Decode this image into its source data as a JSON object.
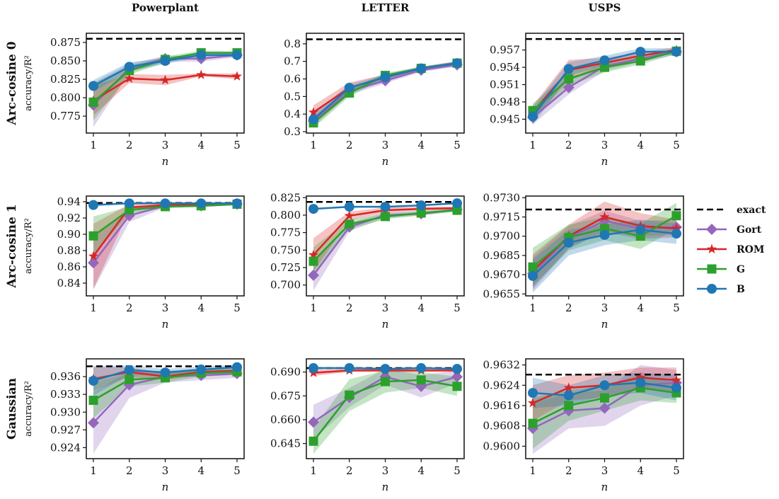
{
  "chart_data": {
    "type": "line",
    "columns": [
      "Powerplant",
      "LETTER",
      "USPS"
    ],
    "rows": [
      "Arc-cosine 0",
      "Arc-cosine 1",
      "Gaussian"
    ],
    "ylabel": "accuracy/R²",
    "xlabel": "n",
    "x": [
      1,
      2,
      3,
      4,
      5
    ],
    "legend": {
      "placement": "right",
      "entries": [
        "exact",
        "Gort",
        "ROM",
        "G",
        "B"
      ]
    },
    "series_style": [
      {
        "name": "Gort",
        "color": "#9467bd",
        "marker": "diamond"
      },
      {
        "name": "ROM",
        "color": "#d62728",
        "marker": "star"
      },
      {
        "name": "G",
        "color": "#2ca02c",
        "marker": "square"
      },
      {
        "name": "B",
        "color": "#1f77b4",
        "marker": "circle"
      }
    ],
    "exact_color": "#000000",
    "panels": [
      {
        "row": 0,
        "col": 0,
        "ylim": [
          0.752,
          0.8875
        ],
        "yticks": [
          "0.775",
          "0.800",
          "0.825",
          "0.850",
          "0.875"
        ],
        "exact": 0.88,
        "series": {
          "Gort": [
            0.79,
            0.84,
            0.853,
            0.853,
            0.858
          ],
          "ROM": [
            0.796,
            0.826,
            0.824,
            0.831,
            0.829
          ],
          "G": [
            0.794,
            0.837,
            0.852,
            0.861,
            0.861
          ],
          "B": [
            0.816,
            0.842,
            0.85,
            0.858,
            0.858
          ]
        },
        "spread": {
          "Gort": [
            0.03,
            0.006,
            0.004,
            0.004,
            0.003
          ],
          "ROM": [
            0.02,
            0.006,
            0.007,
            0.002,
            0.004
          ],
          "G": [
            0.025,
            0.006,
            0.004,
            0.003,
            0.002
          ],
          "B": [
            0.008,
            0.006,
            0.004,
            0.003,
            0.003
          ]
        }
      },
      {
        "row": 0,
        "col": 1,
        "ylim": [
          0.292,
          0.86
        ],
        "yticks": [
          "0.3",
          "0.4",
          "0.5",
          "0.6",
          "0.7",
          "0.8"
        ],
        "exact": 0.826,
        "series": {
          "Gort": [
            0.36,
            0.53,
            0.59,
            0.65,
            0.68
          ],
          "ROM": [
            0.41,
            0.55,
            0.61,
            0.66,
            0.69
          ],
          "G": [
            0.35,
            0.52,
            0.62,
            0.66,
            0.69
          ],
          "B": [
            0.37,
            0.55,
            0.61,
            0.66,
            0.69
          ]
        },
        "spread": {
          "Gort": [
            0.03,
            0.02,
            0.015,
            0.01,
            0.01
          ],
          "ROM": [
            0.04,
            0.03,
            0.015,
            0.01,
            0.01
          ],
          "G": [
            0.03,
            0.02,
            0.015,
            0.01,
            0.01
          ],
          "B": [
            0.03,
            0.02,
            0.015,
            0.01,
            0.01
          ]
        }
      },
      {
        "row": 0,
        "col": 2,
        "ylim": [
          0.9426,
          0.9599
        ],
        "yticks": [
          "0.945",
          "0.948",
          "0.951",
          "0.954",
          "0.957"
        ],
        "exact": 0.9589,
        "series": {
          "Gort": [
            0.9453,
            0.9505,
            0.9542,
            0.9555,
            0.9567
          ],
          "ROM": [
            0.9462,
            0.9535,
            0.9548,
            0.956,
            0.957
          ],
          "G": [
            0.9465,
            0.952,
            0.954,
            0.9551,
            0.9568
          ],
          "B": [
            0.9455,
            0.9537,
            0.9552,
            0.9567,
            0.9567
          ]
        },
        "spread": {
          "Gort": [
            0.0012,
            0.0012,
            0.0008,
            0.0006,
            0.0005
          ],
          "ROM": [
            0.0012,
            0.0018,
            0.0008,
            0.0006,
            0.0005
          ],
          "G": [
            0.0012,
            0.0012,
            0.0009,
            0.0006,
            0.0005
          ],
          "B": [
            0.0015,
            0.0012,
            0.0008,
            0.0006,
            0.0006
          ]
        }
      },
      {
        "row": 1,
        "col": 0,
        "ylim": [
          0.8243,
          0.947
        ],
        "yticks": [
          "0.84",
          "0.86",
          "0.88",
          "0.90",
          "0.92",
          "0.94"
        ],
        "exact": 0.9385,
        "series": {
          "Gort": [
            0.865,
            0.923,
            0.935,
            0.935,
            0.937
          ],
          "ROM": [
            0.873,
            0.933,
            0.936,
            0.936,
            0.937
          ],
          "G": [
            0.898,
            0.93,
            0.934,
            0.935,
            0.937
          ],
          "B": [
            0.936,
            0.938,
            0.938,
            0.938,
            0.938
          ]
        },
        "spread": {
          "Gort": [
            0.033,
            0.008,
            0.002,
            0.002,
            0.001
          ],
          "ROM": [
            0.04,
            0.004,
            0.002,
            0.001,
            0.001
          ],
          "G": [
            0.024,
            0.004,
            0.002,
            0.001,
            0.001
          ],
          "B": [
            0.001,
            0.001,
            0.001,
            0.001,
            0.001
          ]
        }
      },
      {
        "row": 1,
        "col": 1,
        "ylim": [
          0.6845,
          0.8273
        ],
        "yticks": [
          "0.700",
          "0.725",
          "0.750",
          "0.775",
          "0.800",
          "0.825"
        ],
        "exact": 0.819,
        "series": {
          "Gort": [
            0.714,
            0.783,
            0.8,
            0.802,
            0.808
          ],
          "ROM": [
            0.743,
            0.799,
            0.807,
            0.809,
            0.81
          ],
          "G": [
            0.734,
            0.787,
            0.798,
            0.803,
            0.807
          ],
          "B": [
            0.809,
            0.812,
            0.812,
            0.814,
            0.817
          ]
        },
        "spread": {
          "Gort": [
            0.022,
            0.006,
            0.004,
            0.003,
            0.002
          ],
          "ROM": [
            0.024,
            0.006,
            0.004,
            0.003,
            0.002
          ],
          "G": [
            0.02,
            0.007,
            0.004,
            0.003,
            0.002
          ],
          "B": [
            0.001,
            0.001,
            0.001,
            0.001,
            0.001
          ]
        }
      },
      {
        "row": 1,
        "col": 2,
        "ylim": [
          0.96535,
          0.97313
        ],
        "yticks": [
          "0.9655",
          "0.9670",
          "0.9685",
          "0.9700",
          "0.9715",
          "0.9730"
        ],
        "exact": 0.97208,
        "series": {
          "Gort": [
            0.9671,
            0.9699,
            0.9712,
            0.9706,
            0.9707
          ],
          "ROM": [
            0.9673,
            0.97,
            0.9715,
            0.9708,
            0.9706
          ],
          "G": [
            0.9676,
            0.9699,
            0.9706,
            0.97,
            0.9716
          ],
          "B": [
            0.9669,
            0.9695,
            0.9701,
            0.9705,
            0.9702
          ]
        },
        "spread": {
          "Gort": [
            0.0013,
            0.0009,
            0.0008,
            0.0006,
            0.0006
          ],
          "ROM": [
            0.0013,
            0.0009,
            0.0012,
            0.001,
            0.0007
          ],
          "G": [
            0.0015,
            0.001,
            0.0009,
            0.001,
            0.001
          ],
          "B": [
            0.0013,
            0.001,
            0.0008,
            0.0008,
            0.0008
          ]
        }
      },
      {
        "row": 2,
        "col": 0,
        "ylim": [
          0.92214,
          0.939
        ],
        "yticks": [
          "0.924",
          "0.927",
          "0.930",
          "0.933",
          "0.936"
        ],
        "exact": 0.93774,
        "series": {
          "Gort": [
            0.9282,
            0.9346,
            0.936,
            0.9362,
            0.9365
          ],
          "ROM": [
            0.9356,
            0.9368,
            0.936,
            0.9368,
            0.937
          ],
          "G": [
            0.932,
            0.9355,
            0.9358,
            0.9366,
            0.9368
          ],
          "B": [
            0.9353,
            0.9371,
            0.9367,
            0.9372,
            0.9376
          ]
        },
        "spread": {
          "Gort": [
            0.0052,
            0.0022,
            0.001,
            0.0008,
            0.0007
          ],
          "ROM": [
            0.002,
            0.0008,
            0.0006,
            0.0005,
            0.0005
          ],
          "G": [
            0.003,
            0.0012,
            0.0008,
            0.0006,
            0.0005
          ],
          "B": [
            0.0025,
            0.0008,
            0.0006,
            0.0005,
            0.0004
          ]
        }
      },
      {
        "row": 2,
        "col": 1,
        "ylim": [
          0.6355,
          0.6983
        ],
        "yticks": [
          "0.645",
          "0.660",
          "0.675",
          "0.690"
        ],
        "exact": 0.6925,
        "series": {
          "Gort": [
            0.6585,
            0.674,
            0.687,
            0.681,
            0.687
          ],
          "ROM": [
            0.6895,
            0.691,
            0.691,
            0.691,
            0.691
          ],
          "G": [
            0.6465,
            0.6755,
            0.684,
            0.685,
            0.681
          ],
          "B": [
            0.6925,
            0.6925,
            0.692,
            0.6925,
            0.692
          ]
        },
        "spread": {
          "Gort": [
            0.011,
            0.006,
            0.005,
            0.007,
            0.004
          ],
          "ROM": [
            0.002,
            0.001,
            0.001,
            0.001,
            0.001
          ],
          "G": [
            0.008,
            0.01,
            0.007,
            0.005,
            0.006
          ],
          "B": [
            0.0005,
            0.0005,
            0.0005,
            0.0005,
            0.0005
          ]
        }
      },
      {
        "row": 2,
        "col": 2,
        "ylim": [
          0.95951,
          0.96344
        ],
        "yticks": [
          "0.9600",
          "0.9608",
          "0.9616",
          "0.9624",
          "0.9632"
        ],
        "exact": 0.96282,
        "series": {
          "Gort": [
            0.9607,
            0.9614,
            0.9615,
            0.9624,
            0.9625
          ],
          "ROM": [
            0.9617,
            0.9623,
            0.9624,
            0.9627,
            0.9626
          ],
          "G": [
            0.9609,
            0.9616,
            0.9619,
            0.9623,
            0.9621
          ],
          "B": [
            0.9621,
            0.962,
            0.9624,
            0.9625,
            0.9623
          ]
        },
        "spread": {
          "Gort": [
            0.001,
            0.0007,
            0.0007,
            0.0008,
            0.0005
          ],
          "ROM": [
            0.0007,
            0.0005,
            0.0005,
            0.0004,
            0.0005
          ],
          "G": [
            0.001,
            0.0006,
            0.0005,
            0.0005,
            0.0004
          ],
          "B": [
            0.0006,
            0.0004,
            0.0004,
            0.0004,
            0.0005
          ]
        }
      }
    ]
  }
}
